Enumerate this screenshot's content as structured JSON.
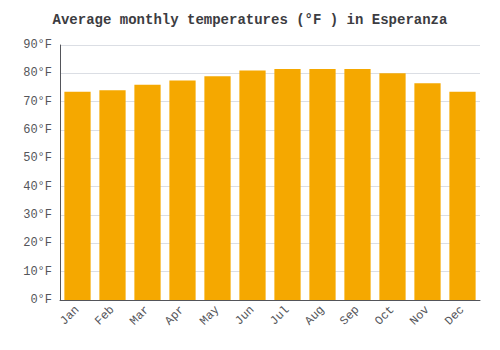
{
  "chart_data": {
    "type": "bar",
    "title": "Average monthly temperatures (°F ) in Esperanza",
    "categories": [
      "Jan",
      "Feb",
      "Mar",
      "Apr",
      "May",
      "Jun",
      "Jul",
      "Aug",
      "Sep",
      "Oct",
      "Nov",
      "Dec"
    ],
    "values": [
      73.5,
      74.0,
      76.0,
      77.5,
      79.0,
      81.0,
      81.5,
      81.5,
      81.5,
      80.0,
      76.5,
      73.5
    ],
    "color": "#F5A800",
    "ylim": [
      0,
      90
    ],
    "yticks": [
      {
        "value": 0,
        "label": "0°F"
      },
      {
        "value": 10,
        "label": "10°F"
      },
      {
        "value": 20,
        "label": "20°F"
      },
      {
        "value": 30,
        "label": "30°F"
      },
      {
        "value": 40,
        "label": "40°F"
      },
      {
        "value": 50,
        "label": "50°F"
      },
      {
        "value": 60,
        "label": "60°F"
      },
      {
        "value": 70,
        "label": "70°F"
      },
      {
        "value": 80,
        "label": "80°F"
      },
      {
        "value": 90,
        "label": "90°F"
      }
    ],
    "grid": true
  }
}
